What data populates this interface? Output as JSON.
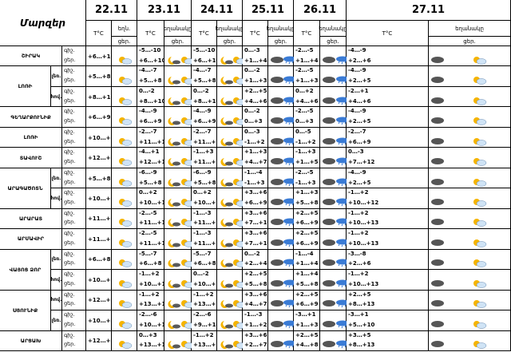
{
  "corner": "Մարզեր",
  "days": [
    {
      "date": "22.11",
      "t": "T°C",
      "w1": "եղն.",
      "w2": "ցեր."
    },
    {
      "date": "23.11",
      "t": "T°C",
      "w1": "եղանակը",
      "w2": "ցեր."
    },
    {
      "date": "24.11",
      "t": "T°C",
      "w1": "եղանակը",
      "w2": "ցեր."
    },
    {
      "date": "25.11",
      "t": "T°C",
      "w1": "եղանակը",
      "w2": "ցեր."
    },
    {
      "date": "26.11",
      "t": "T°C",
      "w1": "եղանակը",
      "w2": "ցեր."
    },
    {
      "date": "27.11",
      "t": "T°C",
      "w1": "եղանակը",
      "w2": "ցեր."
    }
  ],
  "labels": {
    "night": "գիշ.",
    "day": "ցեր."
  },
  "regions": [
    {
      "name": "ՇԻՐԱԿ",
      "sub": "",
      "t": [
        [
          "+6…+10"
        ],
        [
          "-5…-10",
          "+6…+10"
        ],
        [
          "-5…-10",
          "+6…+10"
        ],
        [
          "0…-3",
          "+1…+4"
        ],
        [
          "-2…-5",
          "+1…+4"
        ],
        [
          "-4…-9",
          "+2…+6"
        ]
      ],
      "icons": [
        [
          "sun"
        ],
        [
          "moon",
          "sun"
        ],
        [
          "moon",
          "sun"
        ],
        [
          "cloud",
          "rain"
        ],
        [
          "cloud",
          "rain"
        ],
        [
          "cloud",
          "sun"
        ]
      ]
    },
    {
      "name": "ԼՈՌԻ",
      "sub": "լեռ.",
      "t": [
        [
          "+5…+8"
        ],
        [
          "-4…-7",
          "+5…+8"
        ],
        [
          "-4…-7",
          "+5…+8"
        ],
        [
          "0…-2",
          "+1…+3"
        ],
        [
          "-2…-5",
          "+1…+3"
        ],
        [
          "-4…-9",
          "+2…+5"
        ]
      ],
      "icons": [
        [
          "sun"
        ],
        [
          "moon",
          "sun"
        ],
        [
          "moon",
          "sun"
        ],
        [
          "cloud",
          "rain"
        ],
        [
          "cloud",
          "rain"
        ],
        [
          "cloud",
          "sun"
        ]
      ]
    },
    {
      "name": "",
      "sub": "հով.",
      "t": [
        [
          "+8…+10"
        ],
        [
          "0…-2",
          "+8…+10"
        ],
        [
          "0…-2",
          "+8…+10"
        ],
        [
          "+2…+5",
          "+4…+6"
        ],
        [
          "0…+2",
          "+4…+6"
        ],
        [
          "-2…+1",
          "+4…+6"
        ]
      ],
      "icons": [
        [
          "sun"
        ],
        [
          "moon",
          "sun"
        ],
        [
          "moon",
          "sun"
        ],
        [
          "cloud",
          "rain"
        ],
        [
          "cloud",
          "rain"
        ],
        [
          "cloud",
          "sun"
        ]
      ]
    },
    {
      "name": "ԳԵՂԱՐՔՈՒՆԻՔ",
      "sub": "",
      "t": [
        [
          "+6…+9"
        ],
        [
          "-4…-9",
          "+6…+9"
        ],
        [
          "-4…-9",
          "+6…+9"
        ],
        [
          "0…-2",
          "0…+3"
        ],
        [
          "-2…-5",
          "0…+3"
        ],
        [
          "-4…-9",
          "+2…+5"
        ]
      ],
      "icons": [
        [
          "sun"
        ],
        [
          "moon",
          "sun"
        ],
        [
          "moon",
          "sun"
        ],
        [
          "cloud",
          "rain"
        ],
        [
          "cloud",
          "rain"
        ],
        [
          "cloud",
          "sun"
        ]
      ]
    },
    {
      "name": "ԼՈՌԻ",
      "sub": "",
      "t": [
        [
          "+10…+13"
        ],
        [
          "-2…-7",
          "+11…+15"
        ],
        [
          "-2…-7",
          "+11…+14"
        ],
        [
          "0…-3",
          "-1…+2"
        ],
        [
          "0…-5",
          "-1…+2"
        ],
        [
          "-2…-7",
          "+6…+9"
        ]
      ],
      "icons": [
        [
          "sun"
        ],
        [
          "moon",
          "sun"
        ],
        [
          "moon",
          "sun"
        ],
        [
          "cloud",
          "rain"
        ],
        [
          "cloud",
          "rain"
        ],
        [
          "cloud",
          "sun"
        ]
      ]
    },
    {
      "name": "ՏԱՎՈՒՇ",
      "sub": "",
      "t": [
        [
          "+12…+16"
        ],
        [
          "-4…+1",
          "+12…+17"
        ],
        [
          "-1…+3",
          "+11…+16"
        ],
        [
          "+1…+3",
          "+4…+7"
        ],
        [
          "-1…+3",
          "+1…+5"
        ],
        [
          "0…-3",
          "+7…+12"
        ]
      ],
      "icons": [
        [
          "sun"
        ],
        [
          "moon",
          "sun"
        ],
        [
          "moon",
          "sun"
        ],
        [
          "cloud",
          "rain"
        ],
        [
          "cloud",
          "rain"
        ],
        [
          "cloud",
          "sun"
        ]
      ]
    },
    {
      "name": "ԱՐԱԳԱԾՈՏՆ",
      "sub": "լեռ.",
      "t": [
        [
          "+5…+8"
        ],
        [
          "-6…-9",
          "+5…+8"
        ],
        [
          "-6…-9",
          "+5…+8"
        ],
        [
          "-1…-4",
          "-1…+3"
        ],
        [
          "-2…-5",
          "-1…+3"
        ],
        [
          "-4…-9",
          "+2…+5"
        ]
      ],
      "icons": [
        [
          "sun"
        ],
        [
          "moon",
          "sun"
        ],
        [
          "moon",
          "sun"
        ],
        [
          "cloud",
          "rain"
        ],
        [
          "cloud",
          "rain"
        ],
        [
          "cloud",
          "sun"
        ]
      ]
    },
    {
      "name": "",
      "sub": "հով.",
      "t": [
        [
          "+10…+13"
        ],
        [
          "0…+2",
          "+10…+13"
        ],
        [
          "0…+2",
          "+10…+13"
        ],
        [
          "+3…+6",
          "+6…+9"
        ],
        [
          "+1…+3",
          "+5…+8"
        ],
        [
          "-1…+2",
          "+10…+12"
        ]
      ],
      "icons": [
        [
          "sun"
        ],
        [
          "moon",
          "sun"
        ],
        [
          "moon",
          "sun"
        ],
        [
          "cloud",
          "rain"
        ],
        [
          "cloud",
          "rain"
        ],
        [
          "cloud",
          "sun"
        ]
      ]
    },
    {
      "name": "ԱՐԱՐԱՏ",
      "sub": "",
      "t": [
        [
          "+11…+14"
        ],
        [
          "-2…-5",
          "+11…+14"
        ],
        [
          "-1…-3",
          "+11…+14"
        ],
        [
          "+3…+6",
          "+7…+10"
        ],
        [
          "+2…+5",
          "+6…+9"
        ],
        [
          "-1…+2",
          "+10…+13"
        ]
      ],
      "icons": [
        [
          "sun"
        ],
        [
          "moon",
          "sun"
        ],
        [
          "moon",
          "sun"
        ],
        [
          "cloud",
          "rain"
        ],
        [
          "cloud",
          "rain"
        ],
        [
          "cloud",
          "sun"
        ]
      ]
    },
    {
      "name": "ԱՐՄԱՎԻՐ",
      "sub": "",
      "t": [
        [
          "+11…+14"
        ],
        [
          "-2…-5",
          "+11…+14"
        ],
        [
          "-1…-3",
          "+11…+14"
        ],
        [
          "+3…+6",
          "+7…+10"
        ],
        [
          "+2…+5",
          "+6…+9"
        ],
        [
          "-1…+2",
          "+10…+13"
        ]
      ],
      "icons": [
        [
          "sun"
        ],
        [
          "moon",
          "sun"
        ],
        [
          "moon",
          "sun"
        ],
        [
          "cloud",
          "rain"
        ],
        [
          "cloud",
          "rain"
        ],
        [
          "cloud",
          "sun"
        ]
      ]
    },
    {
      "name": "ՎԱՅՈՑ ՁՈՐ",
      "sub": "լեռ.",
      "t": [
        [
          "+6…+8"
        ],
        [
          "-5…-7",
          "+6…+8"
        ],
        [
          "-5…-7",
          "+6…+8"
        ],
        [
          "0…-2",
          "+2…+4"
        ],
        [
          "-1…-4",
          "+1…+4"
        ],
        [
          "-3…-8",
          "+2…+6"
        ]
      ],
      "icons": [
        [
          "sun"
        ],
        [
          "moon",
          "sun"
        ],
        [
          "moon",
          "sun"
        ],
        [
          "cloud",
          "rain"
        ],
        [
          "cloud",
          "rain"
        ],
        [
          "cloud",
          "sun"
        ]
      ]
    },
    {
      "name": "",
      "sub": "հով.",
      "t": [
        [
          "+10…+13"
        ],
        [
          "-1…+2",
          "+10…+13"
        ],
        [
          "0…-2",
          "+10…+13"
        ],
        [
          "+2…+5",
          "+5…+8"
        ],
        [
          "+1…+4",
          "+5…+8"
        ],
        [
          "-1…+2",
          "+10…+13"
        ]
      ],
      "icons": [
        [
          "sun"
        ],
        [
          "moon",
          "sun"
        ],
        [
          "moon",
          "sun"
        ],
        [
          "cloud",
          "rain"
        ],
        [
          "cloud",
          "rain"
        ],
        [
          "cloud",
          "sun"
        ]
      ]
    },
    {
      "name": "ՍՅՈՒՆԻՔ",
      "sub": "հով.",
      "t": [
        [
          "+12…+16"
        ],
        [
          "-1…+2",
          "+13…+17"
        ],
        [
          "-1…+2",
          "+13…+17"
        ],
        [
          "+3…+6",
          "+4…+7"
        ],
        [
          "+2…+5",
          "+6…+9"
        ],
        [
          "+2…+5",
          "+8…+13"
        ]
      ],
      "icons": [
        [
          "sun"
        ],
        [
          "moon",
          "sun"
        ],
        [
          "moon",
          "sun"
        ],
        [
          "cloud",
          "rain"
        ],
        [
          "cloud",
          "rain"
        ],
        [
          "cloud",
          "sun"
        ]
      ]
    },
    {
      "name": "",
      "sub": "լեռ.",
      "t": [
        [
          "+10…+13"
        ],
        [
          "-2…-6",
          "+10…+13"
        ],
        [
          "-2…-6",
          "+9…+14"
        ],
        [
          "-1…-3",
          "+1…+2"
        ],
        [
          "-3…+1",
          "+1…+3"
        ],
        [
          "-3…+1",
          "+5…+10"
        ]
      ],
      "icons": [
        [
          "sun"
        ],
        [
          "moon",
          "sun"
        ],
        [
          "moon",
          "sun"
        ],
        [
          "cloud",
          "rain"
        ],
        [
          "cloud",
          "rain"
        ],
        [
          "cloud",
          "sun"
        ]
      ]
    },
    {
      "name": "ԱՐՑԱԽ",
      "sub": "",
      "t": [
        [
          "+12…+15"
        ],
        [
          "0…+3",
          "+13…+17"
        ],
        [
          "-1…+2",
          "+13…+17"
        ],
        [
          "+3…+6",
          "+2…+7"
        ],
        [
          "+2…+5",
          "+4…+8"
        ],
        [
          "+3…+5",
          "+8…+13"
        ]
      ],
      "icons": [
        [
          "sun"
        ],
        [
          "moon",
          "sun"
        ],
        [
          "moon",
          "sun"
        ],
        [
          "cloud",
          "rain"
        ],
        [
          "cloud",
          "rain"
        ],
        [
          "cloud",
          "sun"
        ]
      ]
    }
  ]
}
